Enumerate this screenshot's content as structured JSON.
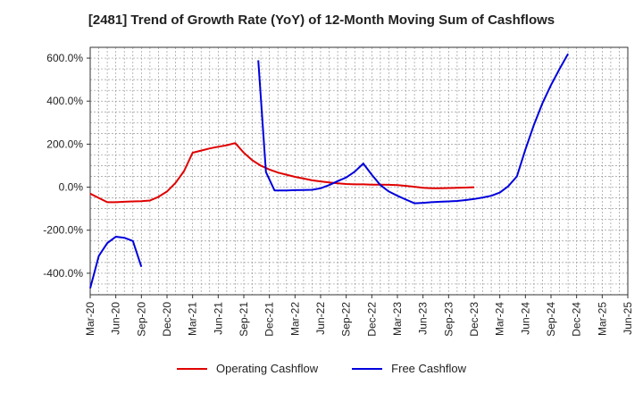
{
  "chart_data": {
    "type": "line",
    "title": "[2481]  Trend of Growth Rate (YoY) of 12-Month Moving Sum of Cashflows",
    "x_labels": [
      "Mar-20",
      "Jun-20",
      "Sep-20",
      "Dec-20",
      "Mar-21",
      "Jun-21",
      "Sep-21",
      "Dec-21",
      "Mar-22",
      "Jun-22",
      "Sep-22",
      "Dec-22",
      "Mar-23",
      "Jun-23",
      "Sep-23",
      "Dec-23",
      "Mar-24",
      "Jun-24",
      "Sep-24",
      "Dec-24",
      "Mar-25",
      "Jun-25"
    ],
    "y_tick_labels": [
      "600.0%",
      "400.0%",
      "200.0%",
      "0.0%",
      "-200.0%",
      "-400.0%"
    ],
    "y_ticks": [
      600,
      400,
      200,
      0,
      -200,
      -400
    ],
    "ylim": [
      -500,
      650
    ],
    "grid": true,
    "legend_position": "bottom",
    "series": [
      {
        "name": "Operating Cashflow",
        "color": "#e00000",
        "points": [
          [
            0,
            -30
          ],
          [
            1,
            -50
          ],
          [
            2,
            -70
          ],
          [
            3,
            -70
          ],
          [
            4,
            -68
          ],
          [
            5,
            -66
          ],
          [
            6,
            -65
          ],
          [
            7,
            -62
          ],
          [
            8,
            -45
          ],
          [
            9,
            -20
          ],
          [
            10,
            20
          ],
          [
            11,
            75
          ],
          [
            12,
            160
          ],
          [
            13,
            170
          ],
          [
            14,
            180
          ],
          [
            15,
            188
          ],
          [
            16,
            195
          ],
          [
            17,
            205
          ],
          [
            18,
            160
          ],
          [
            19,
            125
          ],
          [
            20,
            100
          ],
          [
            21,
            82
          ],
          [
            22,
            68
          ],
          [
            23,
            58
          ],
          [
            24,
            48
          ],
          [
            25,
            40
          ],
          [
            26,
            32
          ],
          [
            27,
            27
          ],
          [
            28,
            22
          ],
          [
            29,
            18
          ],
          [
            30,
            15
          ],
          [
            31,
            13
          ],
          [
            32,
            13
          ],
          [
            33,
            12
          ],
          [
            34,
            12
          ],
          [
            35,
            11
          ],
          [
            36,
            10
          ],
          [
            37,
            6
          ],
          [
            38,
            2
          ],
          [
            39,
            -3
          ],
          [
            40,
            -5
          ],
          [
            41,
            -5
          ],
          [
            42,
            -4
          ],
          [
            43,
            -3
          ],
          [
            44,
            -2
          ],
          [
            45,
            0
          ]
        ]
      },
      {
        "name": "Free Cashflow",
        "color": "#0000dd",
        "segments": [
          [
            [
              0,
              -470
            ],
            [
              1,
              -320
            ],
            [
              2,
              -260
            ],
            [
              3,
              -230
            ],
            [
              4,
              -235
            ],
            [
              5,
              -250
            ],
            [
              6,
              -370
            ]
          ],
          [
            [
              19.7,
              590
            ],
            [
              20.6,
              70
            ],
            [
              21.6,
              -15
            ],
            [
              22,
              -15
            ],
            [
              23,
              -15
            ],
            [
              24,
              -14
            ],
            [
              25,
              -13
            ],
            [
              26,
              -12
            ],
            [
              27,
              -5
            ],
            [
              28,
              10
            ],
            [
              29,
              28
            ],
            [
              30,
              45
            ],
            [
              31,
              72
            ],
            [
              32,
              110
            ],
            [
              33,
              58
            ],
            [
              34,
              10
            ],
            [
              35,
              -20
            ],
            [
              36,
              -40
            ],
            [
              37,
              -58
            ],
            [
              38,
              -75
            ],
            [
              39,
              -73
            ],
            [
              40,
              -70
            ],
            [
              41,
              -68
            ],
            [
              42,
              -66
            ],
            [
              43,
              -64
            ],
            [
              44,
              -60
            ],
            [
              45,
              -55
            ],
            [
              46,
              -48
            ],
            [
              47,
              -40
            ],
            [
              48,
              -25
            ],
            [
              49,
              5
            ],
            [
              50,
              50
            ],
            [
              51,
              175
            ],
            [
              52,
              290
            ],
            [
              53,
              390
            ],
            [
              54,
              475
            ],
            [
              55,
              550
            ],
            [
              56,
              620
            ]
          ]
        ]
      }
    ]
  }
}
